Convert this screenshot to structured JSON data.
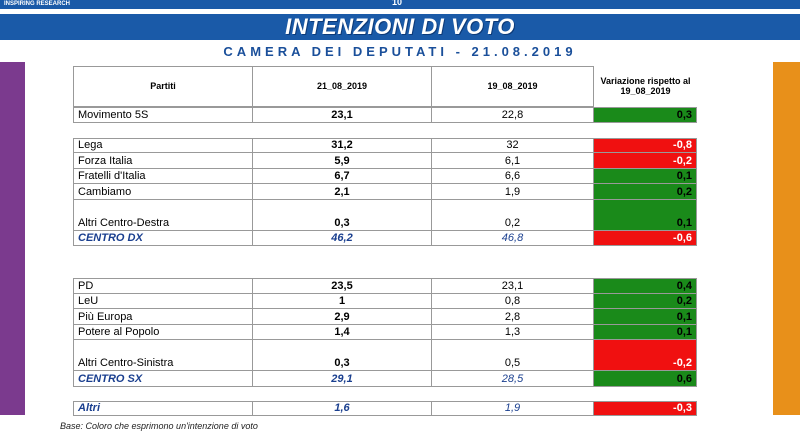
{
  "header": {
    "logo": "INSPIRING RESEARCH",
    "page": "10",
    "title": "INTENZIONI DI VOTO",
    "subtitle": "CAMERA DEI DEPUTATI - 21.08.2019"
  },
  "table": {
    "columns": [
      "Partiti",
      "21_08_2019",
      "19_08_2019",
      "Variazione rispetto al 19_08_2019"
    ],
    "rows": [
      [
        "Movimento 5S",
        "23,1",
        "22,8",
        "0,3"
      ],
      [
        "Lega",
        "31,2",
        "32",
        "-0,8"
      ],
      [
        "Forza Italia",
        "5,9",
        "6,1",
        "-0,2"
      ],
      [
        "Fratelli d'Italia",
        "6,7",
        "6,6",
        "0,1"
      ],
      [
        "Cambiamo",
        "2,1",
        "1,9",
        "0,2"
      ],
      [
        "Altri Centro-Destra",
        "0,3",
        "0,2",
        "0,1"
      ],
      [
        "CENTRO DX",
        "46,2",
        "46,8",
        "-0,6"
      ],
      [
        "PD",
        "23,5",
        "23,1",
        "0,4"
      ],
      [
        "LeU",
        "1",
        "0,8",
        "0,2"
      ],
      [
        "Più Europa",
        "2,9",
        "2,8",
        "0,1"
      ],
      [
        "Potere al Popolo",
        "1,4",
        "1,3",
        "0,1"
      ],
      [
        "Altri Centro-Sinistra",
        "0,3",
        "0,5",
        "-0,2"
      ],
      [
        "CENTRO SX",
        "29,1",
        "28,5",
        "0,6"
      ],
      [
        "Altri",
        "1,6",
        "1,9",
        "-0,3"
      ]
    ]
  },
  "footnote": "Base: Coloro che esprimono un'intenzione di voto"
}
